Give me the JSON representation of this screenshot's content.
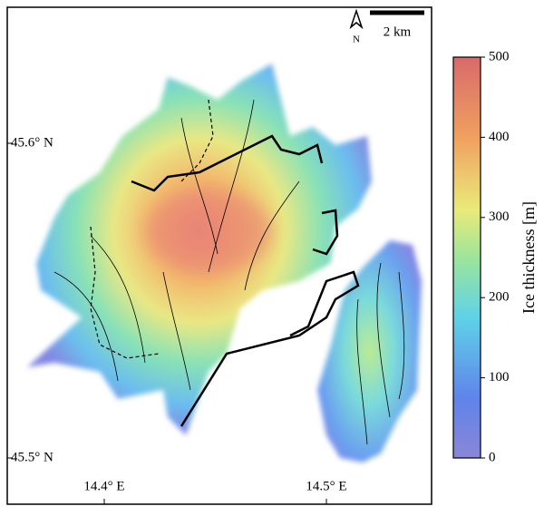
{
  "map": {
    "lat_labels": [
      "45.6° N",
      "45.5° N"
    ],
    "lon_labels": [
      "14.4° E",
      "14.5° E"
    ],
    "north_label": "N",
    "scale_label": "2 km"
  },
  "colorbar": {
    "label": "Ice thickness [m]",
    "range": [
      0,
      500
    ],
    "ticks": [
      0,
      100,
      200,
      300,
      400,
      500
    ]
  }
}
